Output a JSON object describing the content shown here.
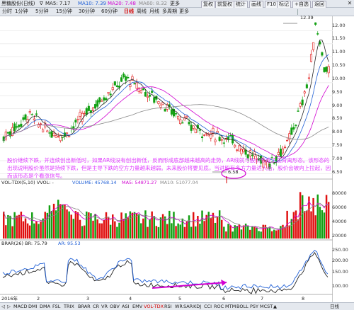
{
  "title_bar": {
    "stock_name": "黑糖股份(日线)",
    "ma_legend": [
      {
        "label": "MA5: 7.17",
        "color": "#222222"
      },
      {
        "label": "MA10: 7.39",
        "color": "#1f5fd6"
      },
      {
        "label": "MA20: 7.48",
        "color": "#d100d1"
      },
      {
        "label": "MA60: 8.32",
        "color": "#888888"
      }
    ],
    "more": "更多",
    "buttons": [
      "复权",
      "前复权",
      "统计",
      "画线",
      "F10",
      "标记",
      "+自选",
      "返回"
    ]
  },
  "period_bar": {
    "items": [
      "分时",
      "1分钟",
      "5分钟",
      "15分钟",
      "30分钟",
      "60分钟",
      "日线",
      "周线",
      "月线",
      "多周期",
      "更多"
    ],
    "active": "日线"
  },
  "price_axis": [
    "12.00",
    "11.50",
    "11.00",
    "10.50",
    "10.00",
    "9.50",
    "9.00",
    "8.50",
    "8.00",
    "7.50",
    "7.00",
    "6.50"
  ],
  "price_marks": {
    "high_label": "12.39",
    "low_label": "6.58"
  },
  "annotation": "股价继续下跌，并连续创出新低时，如果AR线没有创出新低，反而形成底部越来越高的走势，AR线就与股价形成了底背离形态。该形态的出现说明股价虽然是持续下跌，但是主导下跌的空方力量越来越弱。未来股价将要见底，当进股有多方力量进入后，股价会被向上拉起，因而该形态是个看涨信号。",
  "volume_panel": {
    "legend": [
      {
        "label": "VOL-TDX(5,10) VVOL: -",
        "color": "#222222"
      },
      {
        "label": "VOLUME: 45768.14",
        "color": "#1f5fd6"
      },
      {
        "label": "MA5: 54871.27",
        "color": "#d100d1"
      },
      {
        "label": "MA10: 51077.04",
        "color": "#888888"
      }
    ],
    "axis": [
      "80000",
      "60000",
      "40000",
      "20000"
    ]
  },
  "brar_panel": {
    "legend": [
      {
        "label": "BRAR(26) BR: 75.79",
        "color": "#222222"
      },
      {
        "label": "AR: 95.53",
        "color": "#1f5fd6"
      }
    ],
    "axis": [
      "250.00",
      "200.00",
      "150.00",
      "100.00"
    ]
  },
  "time_axis": {
    "year": "2016年",
    "months": [
      "2",
      "3",
      "4",
      "5",
      "6",
      "7",
      "8"
    ]
  },
  "indicator_tabs": {
    "items": [
      "MACD",
      "DMI",
      "DMA",
      "FSL",
      "TRIX",
      "BRAR",
      "CR",
      "VR",
      "OBV",
      "ASI",
      "EMV",
      "VOL-TDX",
      "RSI",
      "WR",
      "SAR",
      "KDJ",
      "CCI",
      "ROC",
      "MTM",
      "BOLL",
      "PSY",
      "MCST"
    ],
    "active": "VOL-TDX",
    "right_label": "日线"
  },
  "colors": {
    "up": "#e01010",
    "down": "#12a012",
    "ma5": "#222222",
    "ma10": "#1f5fd6",
    "ma20": "#d100d1",
    "ma60": "#888888",
    "annotation": "#e040ff"
  }
}
